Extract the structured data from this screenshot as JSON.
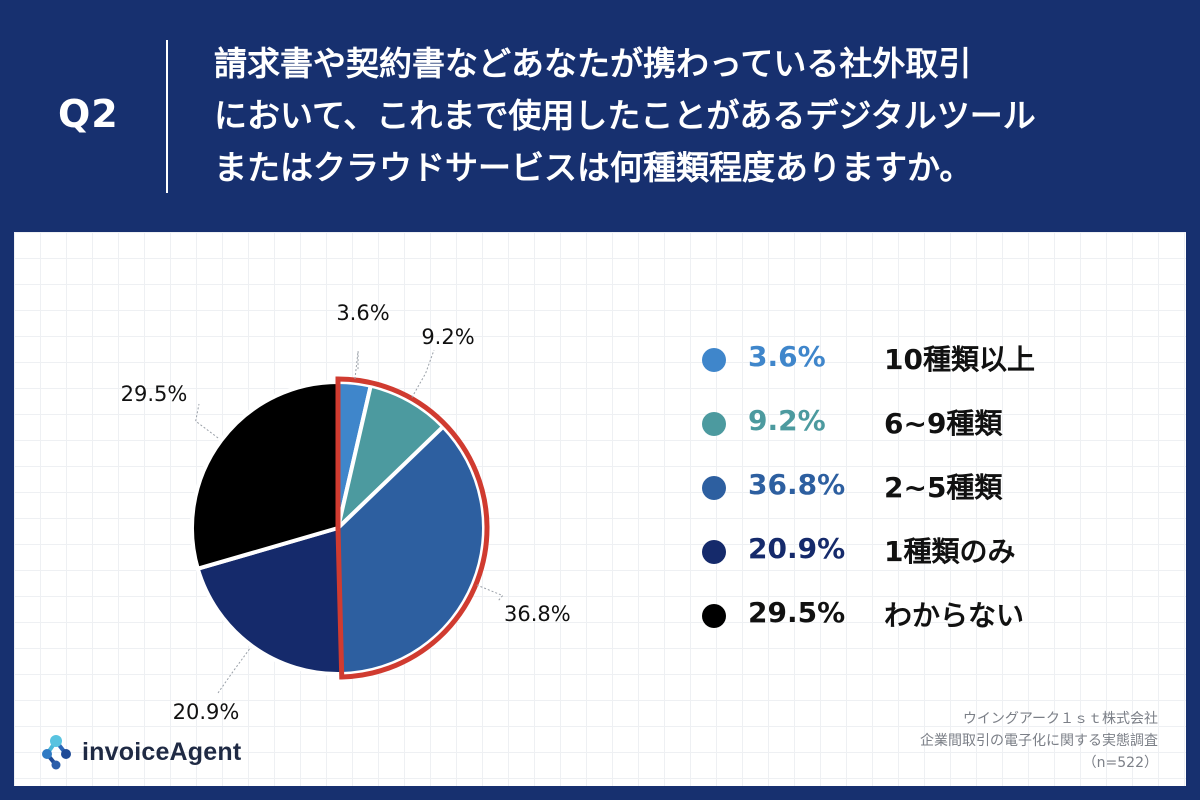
{
  "header": {
    "q_label": "Q2",
    "question_lines": [
      "請求書や契約書などあなたが携わっている社外取引",
      "において、これまで使用したことがあるデジタルツール",
      "またはクラウドサービスは何種類程度ありますか。"
    ]
  },
  "chart_data": {
    "type": "pie",
    "slices": [
      {
        "label": "10種類以上",
        "value": 3.6,
        "display": "3.6%",
        "color": "#3f86cb"
      },
      {
        "label": "6~9種類",
        "value": 9.2,
        "display": "9.2%",
        "color": "#4c9a9f"
      },
      {
        "label": "2~5種類",
        "value": 36.8,
        "display": "36.8%",
        "color": "#2d5fa0"
      },
      {
        "label": "1種類のみ",
        "value": 20.9,
        "display": "20.9%",
        "color": "#152a6b"
      },
      {
        "label": "わからない",
        "value": 29.5,
        "display": "29.5%",
        "color": "#000000"
      }
    ],
    "highlighted_slices": [
      0,
      1,
      2
    ],
    "highlight_color": "#d03b30",
    "legend_placement": "right"
  },
  "footer": {
    "logo_text": "invoiceAgent",
    "source_lines": [
      "ウイングアーク１ｓｔ株式会社",
      "企業間取引の電子化に関する実態調査",
      "（n=522）"
    ]
  }
}
